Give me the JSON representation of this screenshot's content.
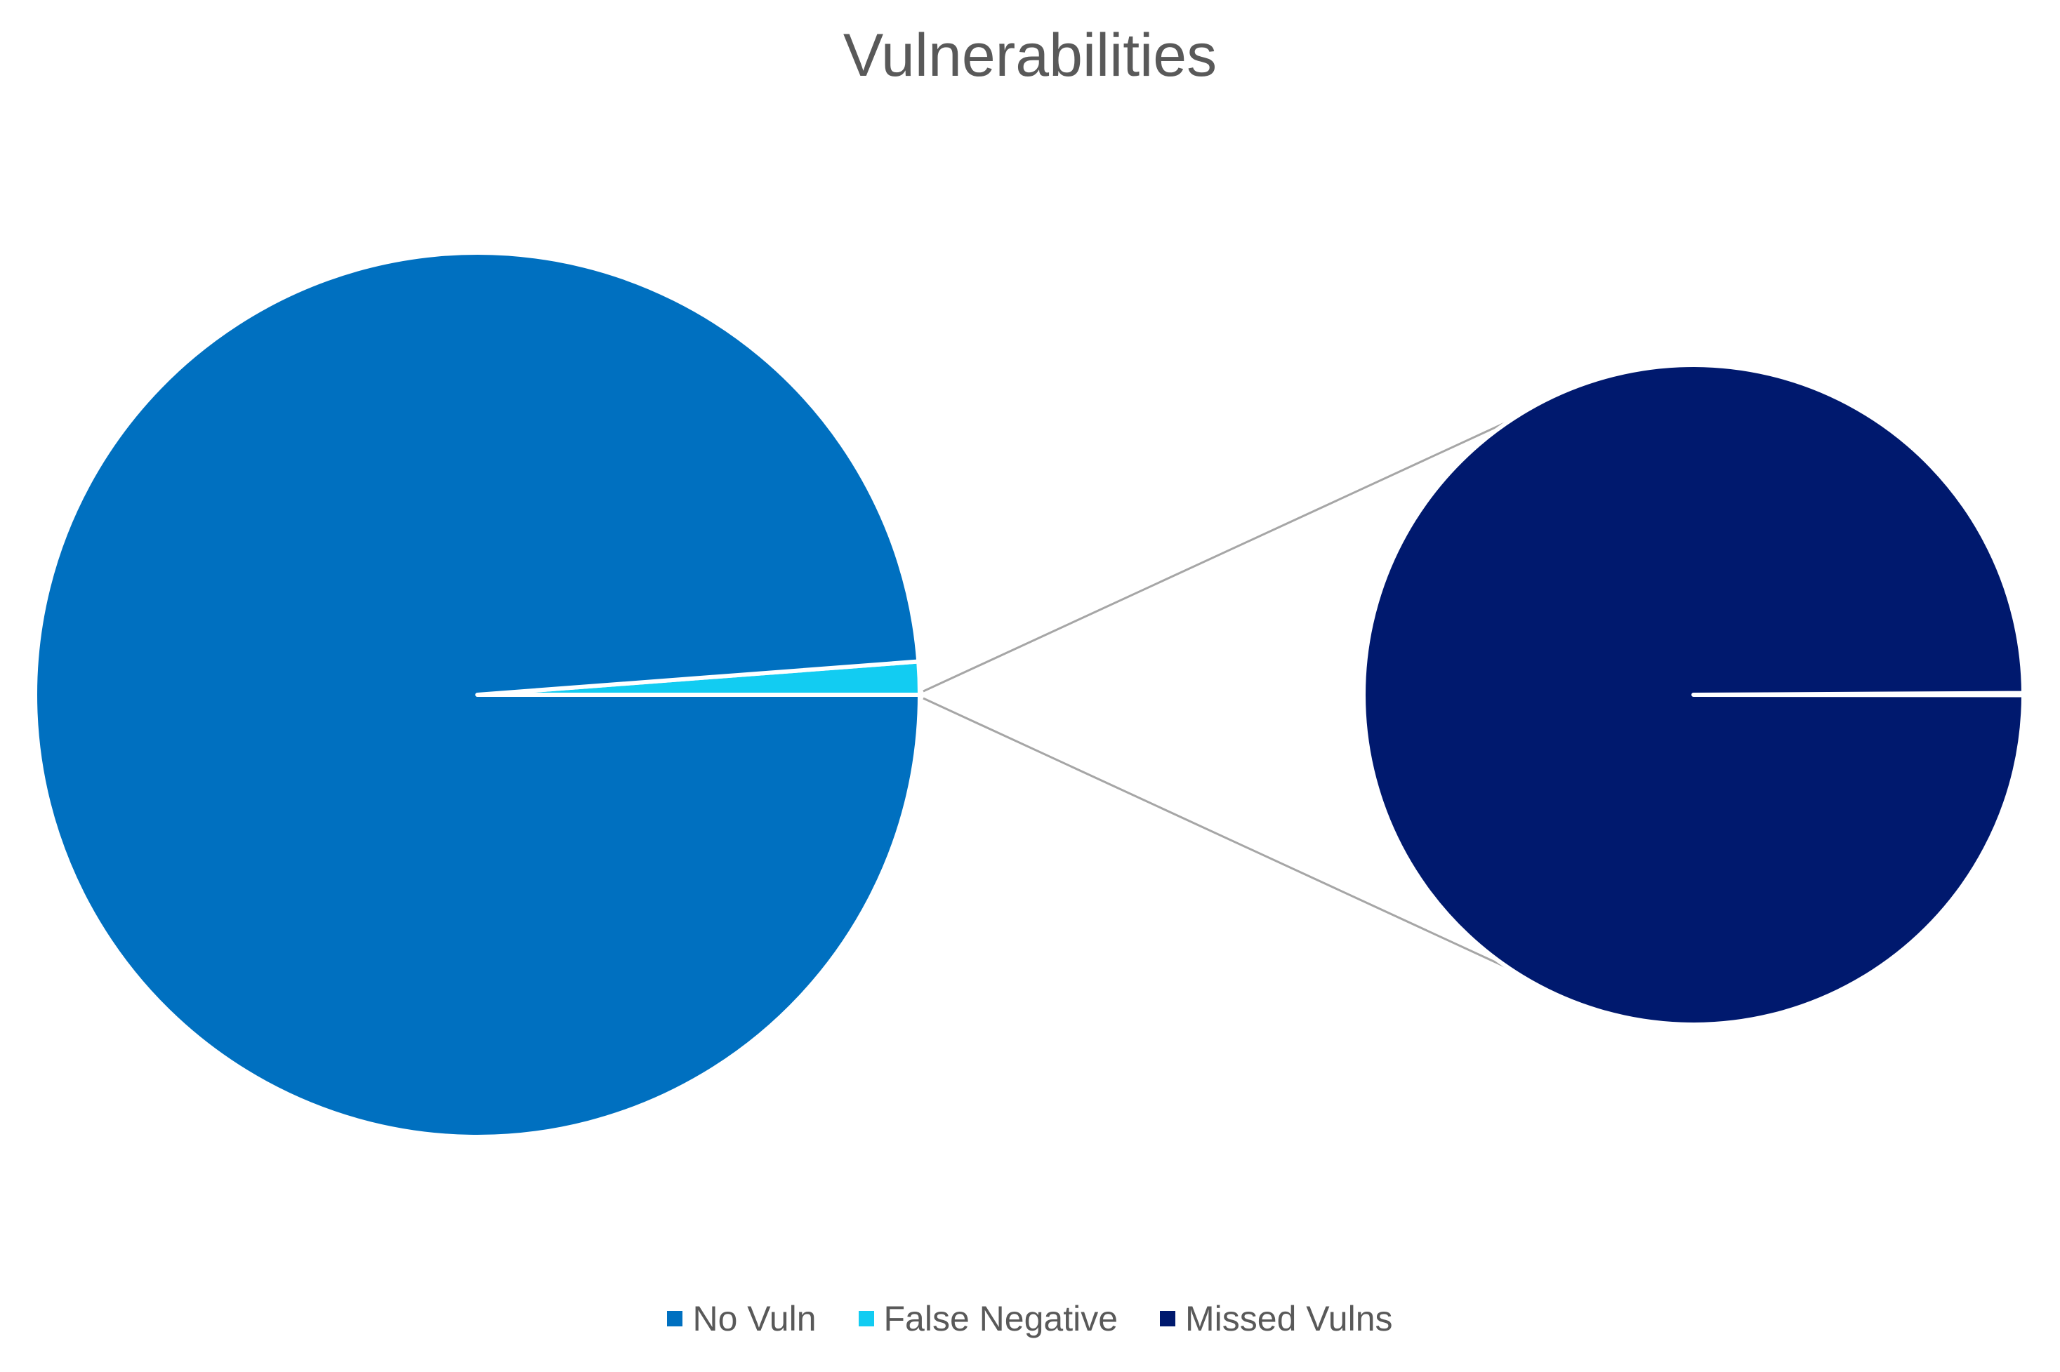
{
  "chart_data": {
    "type": "pie",
    "title": "Vulnerabilities",
    "subtype": "pie-of-pie",
    "categories": [
      "No Vuln",
      "False Negative",
      "Missed Vulns"
    ],
    "main_pie": {
      "slices": [
        {
          "name": "No Vuln",
          "value": 98.8,
          "color": "#0070C0"
        },
        {
          "name": "False Negative",
          "value": 1.2,
          "color": "#12CCF2"
        }
      ]
    },
    "secondary_pie": {
      "slices": [
        {
          "name": "Missed Vulns",
          "value": 99.9,
          "color": "#00196E"
        },
        {
          "name": "",
          "value": 0.1,
          "color": "#00196E"
        }
      ]
    },
    "legend": {
      "position": "bottom",
      "entries": [
        {
          "label": "No Vuln",
          "color": "#0070C0"
        },
        {
          "label": "False Negative",
          "color": "#12CCF2"
        },
        {
          "label": "Missed Vulns",
          "color": "#00196E"
        }
      ]
    }
  }
}
